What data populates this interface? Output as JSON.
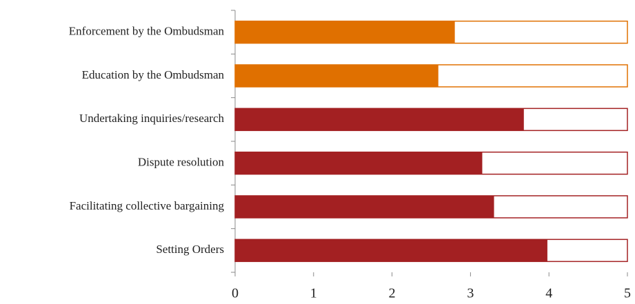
{
  "chart_data": {
    "type": "bar",
    "orientation": "horizontal",
    "categories": [
      "Enforcement by the Ombudsman",
      "Education by the Ombudsman",
      "Undertaking inquiries/research",
      "Dispute resolution",
      "Facilitating collective bargaining",
      "Setting Orders"
    ],
    "values": [
      2.8,
      2.59,
      3.68,
      3.15,
      3.3,
      3.98
    ],
    "colors": [
      "#e07000",
      "#e07000",
      "#a32022",
      "#a32022",
      "#a32022",
      "#a32022"
    ],
    "xlim": [
      0,
      5
    ],
    "xticks": [
      0,
      1,
      2,
      3,
      4,
      5
    ],
    "grid": false
  }
}
